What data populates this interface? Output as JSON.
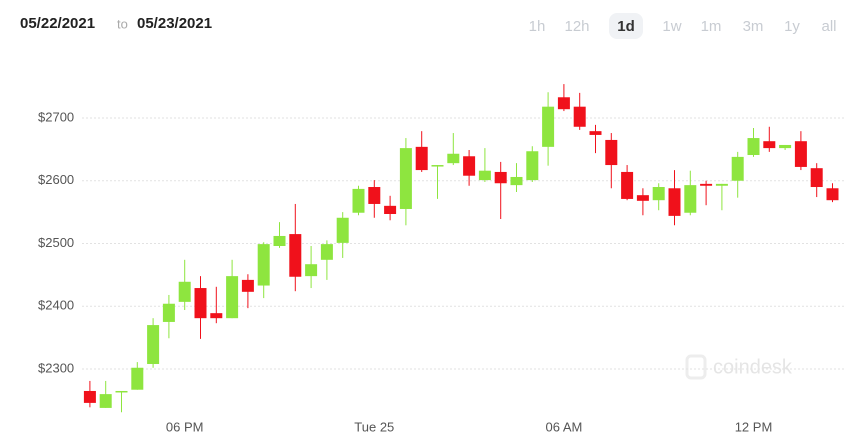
{
  "header": {
    "date_from": "05/22/2021",
    "separator": "to",
    "date_to": "05/23/2021",
    "ranges": [
      "1h",
      "12h",
      "1d",
      "1w",
      "1m",
      "3m",
      "1y",
      "all"
    ],
    "active_range": "1d"
  },
  "chart_data": {
    "type": "candlestick",
    "categories": [
      null,
      null,
      null,
      null,
      null,
      null,
      "06 PM",
      null,
      null,
      null,
      null,
      null,
      null,
      null,
      null,
      null,
      null,
      null,
      "Tue 25",
      null,
      null,
      null,
      null,
      null,
      null,
      null,
      null,
      null,
      null,
      null,
      "06 AM",
      null,
      null,
      null,
      null,
      null,
      null,
      null,
      null,
      null,
      null,
      null,
      "12 PM",
      null,
      null,
      null,
      null,
      null
    ],
    "open": [
      2265,
      2238,
      2263,
      2267,
      2308,
      2375,
      2407,
      2429,
      2389,
      2381,
      2442,
      2433,
      2496,
      2515,
      2448,
      2474,
      2501,
      2549,
      2590,
      2560,
      2555,
      2654,
      2624,
      2628,
      2639,
      2601,
      2614,
      2593,
      2601,
      2654,
      2733,
      2718,
      2679,
      2665,
      2614,
      2577,
      2569,
      2588,
      2549,
      2595,
      2592,
      2600,
      2641,
      2663,
      2652,
      2663,
      2620,
      2588
    ],
    "high": [
      2281,
      2281,
      2265,
      2311,
      2381,
      2418,
      2474,
      2448,
      2431,
      2474,
      2451,
      2502,
      2534,
      2563,
      2496,
      2505,
      2550,
      2592,
      2601,
      2576,
      2668,
      2679,
      2625,
      2676,
      2649,
      2652,
      2630,
      2628,
      2655,
      2741,
      2754,
      2740,
      2689,
      2676,
      2625,
      2588,
      2596,
      2617,
      2616,
      2600,
      2595,
      2646,
      2684,
      2686,
      2657,
      2679,
      2628,
      2596
    ],
    "low": [
      2239,
      2238,
      2231,
      2267,
      2302,
      2349,
      2394,
      2348,
      2373,
      2381,
      2397,
      2413,
      2493,
      2424,
      2429,
      2442,
      2477,
      2545,
      2541,
      2537,
      2529,
      2614,
      2571,
      2625,
      2592,
      2598,
      2539,
      2582,
      2598,
      2624,
      2711,
      2681,
      2644,
      2588,
      2569,
      2545,
      2553,
      2529,
      2545,
      2561,
      2553,
      2573,
      2638,
      2646,
      2649,
      2617,
      2574,
      2566
    ],
    "close": [
      2246,
      2260,
      2265,
      2302,
      2370,
      2404,
      2439,
      2381,
      2381,
      2448,
      2423,
      2499,
      2512,
      2447,
      2467,
      2499,
      2541,
      2587,
      2563,
      2547,
      2652,
      2617,
      2625,
      2643,
      2608,
      2616,
      2596,
      2606,
      2647,
      2718,
      2714,
      2686,
      2673,
      2625,
      2571,
      2568,
      2590,
      2544,
      2593,
      2592,
      2595,
      2638,
      2668,
      2652,
      2657,
      2622,
      2590,
      2569
    ],
    "up_color": "#8ee53f",
    "down_color": "#f0111b",
    "ylim": [
      2235,
      2790
    ],
    "yticks": [
      {
        "value": 2300,
        "label": "$2300"
      },
      {
        "value": 2400,
        "label": "$2400"
      },
      {
        "value": 2500,
        "label": "$2500"
      },
      {
        "value": 2600,
        "label": "$2600"
      },
      {
        "value": 2700,
        "label": "$2700"
      }
    ],
    "grid": true,
    "watermark": "coindesk"
  }
}
